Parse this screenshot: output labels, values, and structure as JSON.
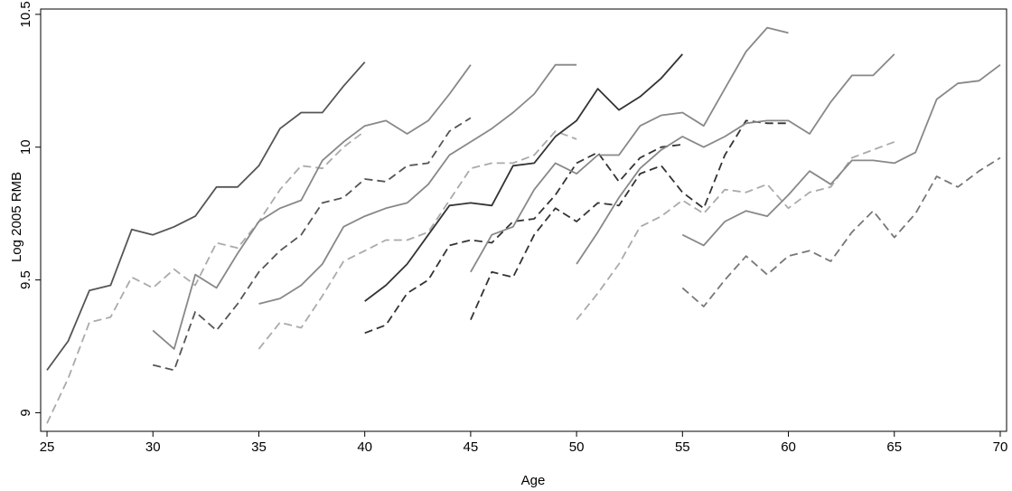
{
  "chart_data": {
    "type": "line",
    "title": "",
    "xlabel": "Age",
    "ylabel": "Log 2005 RMB",
    "xlim": [
      24.7,
      70.3
    ],
    "ylim": [
      8.93,
      10.52
    ],
    "x_ticks": [
      25,
      30,
      35,
      40,
      45,
      50,
      55,
      60,
      65,
      70
    ],
    "x_tick_labels": [
      "25",
      "30",
      "35",
      "40",
      "45",
      "50",
      "55",
      "60",
      "65",
      "70"
    ],
    "y_ticks": [
      9,
      9.5,
      10,
      10.5
    ],
    "y_tick_labels": [
      "9",
      "9.5",
      "10",
      "10.5"
    ],
    "grid": false,
    "legend": "none",
    "series": [
      {
        "color": "#555555",
        "dash": "solid",
        "x": [
          25,
          26,
          27,
          28,
          29,
          30,
          31,
          32,
          33,
          34,
          35,
          36,
          37,
          38,
          39,
          40
        ],
        "y": [
          9.16,
          9.27,
          9.46,
          9.48,
          9.69,
          9.67,
          9.7,
          9.74,
          9.85,
          9.85,
          9.93,
          10.07,
          10.13,
          10.13,
          10.23,
          10.32
        ]
      },
      {
        "color": "#aaaaaa",
        "dash": "dashed",
        "x": [
          25,
          26,
          27,
          28,
          29,
          30,
          31,
          32,
          33,
          34,
          35,
          36,
          37,
          38,
          39,
          40
        ],
        "y": [
          8.96,
          9.13,
          9.34,
          9.36,
          9.51,
          9.47,
          9.54,
          9.48,
          9.64,
          9.62,
          9.72,
          9.84,
          9.93,
          9.92,
          10.0,
          10.06
        ]
      },
      {
        "color": "#888888",
        "dash": "solid",
        "x": [
          30,
          31,
          32,
          33,
          34,
          35,
          36,
          37,
          38,
          39,
          40,
          41,
          42,
          43,
          44,
          45
        ],
        "y": [
          9.31,
          9.24,
          9.52,
          9.47,
          9.6,
          9.72,
          9.77,
          9.8,
          9.95,
          10.02,
          10.08,
          10.1,
          10.05,
          10.1,
          10.2,
          10.31
        ]
      },
      {
        "color": "#555555",
        "dash": "dashed",
        "x": [
          30,
          31,
          32,
          33,
          34,
          35,
          36,
          37,
          38,
          39,
          40,
          41,
          42,
          43,
          44,
          45
        ],
        "y": [
          9.18,
          9.16,
          9.38,
          9.31,
          9.41,
          9.53,
          9.61,
          9.67,
          9.79,
          9.81,
          9.88,
          9.87,
          9.93,
          9.94,
          10.06,
          10.11
        ]
      },
      {
        "color": "#888888",
        "dash": "solid",
        "x": [
          35,
          36,
          37,
          38,
          39,
          40,
          41,
          42,
          43,
          44,
          45,
          46,
          47,
          48,
          49,
          50
        ],
        "y": [
          9.41,
          9.43,
          9.48,
          9.56,
          9.7,
          9.74,
          9.77,
          9.79,
          9.86,
          9.97,
          10.02,
          10.07,
          10.13,
          10.2,
          10.31,
          10.31
        ]
      },
      {
        "color": "#aaaaaa",
        "dash": "dashed",
        "x": [
          35,
          36,
          37,
          38,
          39,
          40,
          41,
          42,
          43,
          44,
          45,
          46,
          47,
          48,
          49,
          50
        ],
        "y": [
          9.24,
          9.34,
          9.32,
          9.44,
          9.57,
          9.61,
          9.65,
          9.65,
          9.68,
          9.8,
          9.92,
          9.94,
          9.94,
          9.97,
          10.06,
          10.03
        ]
      },
      {
        "color": "#333333",
        "dash": "solid",
        "x": [
          40,
          41,
          42,
          43,
          44,
          45,
          46,
          47,
          48,
          49,
          50,
          51,
          52,
          53,
          54,
          55
        ],
        "y": [
          9.42,
          9.48,
          9.56,
          9.67,
          9.78,
          9.79,
          9.78,
          9.93,
          9.94,
          10.04,
          10.1,
          10.22,
          10.14,
          10.19,
          10.26,
          10.35
        ]
      },
      {
        "color": "#333333",
        "dash": "dashed",
        "x": [
          40,
          41,
          42,
          43,
          44,
          45,
          46,
          47,
          48,
          49,
          50,
          51,
          52,
          53,
          54,
          55
        ],
        "y": [
          9.3,
          9.33,
          9.45,
          9.5,
          9.63,
          9.65,
          9.64,
          9.72,
          9.73,
          9.82,
          9.94,
          9.98,
          9.87,
          9.96,
          10.0,
          10.01
        ]
      },
      {
        "color": "#888888",
        "dash": "solid",
        "x": [
          45,
          46,
          47,
          48,
          49,
          50,
          51,
          52,
          53,
          54,
          55,
          56,
          57,
          58,
          59,
          60
        ],
        "y": [
          9.53,
          9.67,
          9.7,
          9.84,
          9.94,
          9.9,
          9.97,
          9.97,
          10.08,
          10.12,
          10.13,
          10.08,
          10.22,
          10.36,
          10.45,
          10.43
        ]
      },
      {
        "color": "#333333",
        "dash": "dashed",
        "x": [
          45,
          46,
          47,
          48,
          49,
          50,
          51,
          52,
          53,
          54,
          55,
          56,
          57,
          58,
          59,
          60
        ],
        "y": [
          9.35,
          9.53,
          9.51,
          9.67,
          9.77,
          9.72,
          9.79,
          9.78,
          9.9,
          9.93,
          9.83,
          9.77,
          9.97,
          10.1,
          10.09,
          10.09
        ]
      },
      {
        "color": "#888888",
        "dash": "solid",
        "x": [
          50,
          51,
          52,
          53,
          54,
          55,
          56,
          57,
          58,
          59,
          60,
          61,
          62,
          63,
          64,
          65
        ],
        "y": [
          9.56,
          9.68,
          9.81,
          9.92,
          9.99,
          10.04,
          10.0,
          10.04,
          10.09,
          10.1,
          10.1,
          10.05,
          10.17,
          10.27,
          10.27,
          10.35
        ]
      },
      {
        "color": "#aaaaaa",
        "dash": "dashed",
        "x": [
          50,
          51,
          52,
          53,
          54,
          55,
          56,
          57,
          58,
          59,
          60,
          61,
          62,
          63,
          64,
          65
        ],
        "y": [
          9.35,
          9.45,
          9.56,
          9.7,
          9.74,
          9.8,
          9.75,
          9.84,
          9.83,
          9.86,
          9.77,
          9.83,
          9.85,
          9.96,
          9.99,
          10.02
        ]
      },
      {
        "color": "#888888",
        "dash": "solid",
        "x": [
          55,
          56,
          57,
          58,
          59,
          60,
          61,
          62,
          63,
          64,
          65,
          66,
          67,
          68,
          69,
          70
        ],
        "y": [
          9.67,
          9.63,
          9.72,
          9.76,
          9.74,
          9.82,
          9.91,
          9.86,
          9.95,
          9.95,
          9.94,
          9.98,
          10.18,
          10.24,
          10.25,
          10.31
        ]
      },
      {
        "color": "#777777",
        "dash": "dashed",
        "x": [
          55,
          56,
          57,
          58,
          59,
          60,
          61,
          62,
          63,
          64,
          65,
          66,
          67,
          68,
          69,
          70
        ],
        "y": [
          9.47,
          9.4,
          9.5,
          9.59,
          9.52,
          9.59,
          9.61,
          9.57,
          9.68,
          9.76,
          9.66,
          9.75,
          9.89,
          9.85,
          9.91,
          9.96
        ]
      }
    ]
  }
}
